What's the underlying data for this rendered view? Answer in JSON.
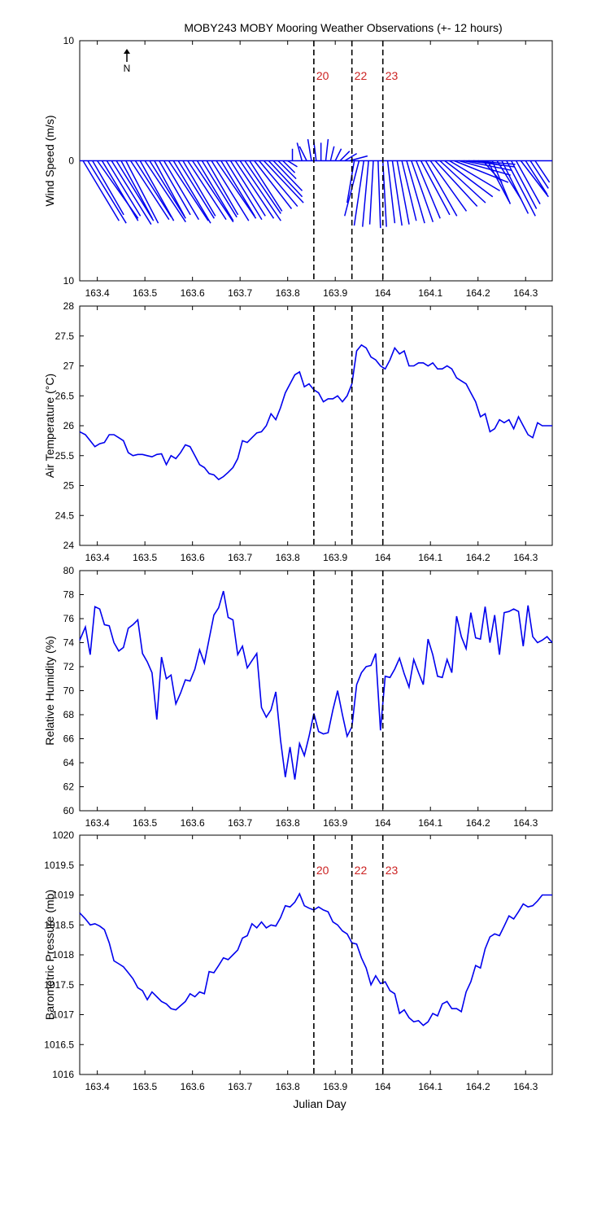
{
  "figure": {
    "title": "MOBY243 MOBY Mooring Weather Observations (+- 12 hours)",
    "north_label": "N",
    "xlabel": "Julian Day",
    "colors": {
      "series": "#0000ee",
      "marker": "#000000",
      "marker_label": "#cc2222"
    }
  },
  "chart_data": [
    {
      "type": "line",
      "subtype": "wind-vectors",
      "ylabel": "Wind Speed (m/s)",
      "xlim": [
        163.363,
        164.356
      ],
      "ylim": [
        -10,
        10
      ],
      "yticks": [
        10,
        0,
        10
      ],
      "xticks": [
        163.4,
        163.5,
        163.6,
        163.7,
        163.8,
        163.9,
        164,
        164.1,
        164.2,
        164.3
      ],
      "x": [
        163.37,
        163.38,
        163.39,
        163.4,
        163.41,
        163.42,
        163.43,
        163.44,
        163.45,
        163.46,
        163.47,
        163.48,
        163.49,
        163.5,
        163.51,
        163.52,
        163.53,
        163.54,
        163.55,
        163.56,
        163.57,
        163.58,
        163.59,
        163.6,
        163.61,
        163.62,
        163.63,
        163.64,
        163.65,
        163.66,
        163.67,
        163.68,
        163.69,
        163.7,
        163.71,
        163.72,
        163.73,
        163.74,
        163.75,
        163.76,
        163.77,
        163.78,
        163.79,
        163.8,
        163.81,
        163.83,
        163.84,
        163.85,
        163.86,
        163.87,
        163.88,
        163.89,
        163.9,
        163.91,
        163.92,
        163.93,
        163.94,
        163.95,
        163.96,
        163.97,
        163.98,
        163.99,
        164.0,
        164.01,
        164.02,
        164.03,
        164.04,
        164.05,
        164.06,
        164.07,
        164.08,
        164.09,
        164.1,
        164.11,
        164.12,
        164.13,
        164.14,
        164.15,
        164.16,
        164.17,
        164.18,
        164.19,
        164.2,
        164.21,
        164.22,
        164.23,
        164.24,
        164.25,
        164.26,
        164.27,
        164.28,
        164.29,
        164.3,
        164.31,
        164.32
      ],
      "u": [
        3.0,
        3.2,
        2.6,
        3.4,
        3.0,
        2.8,
        3.3,
        3.1,
        2.6,
        2.7,
        3.2,
        3.0,
        2.8,
        3.4,
        3.0,
        2.5,
        2.6,
        2.9,
        3.3,
        3.1,
        3.0,
        2.7,
        3.2,
        3.4,
        3.0,
        2.9,
        2.6,
        3.1,
        3.3,
        2.8,
        3.0,
        2.9,
        3.2,
        3.4,
        3.0,
        2.7,
        3.1,
        3.2,
        3.3,
        2.8,
        2.4,
        1.5,
        1.0,
        0.8,
        0.0,
        -0.4,
        -0.6,
        -0.3,
        -0.2,
        0.0,
        0.2,
        0.3,
        0.5,
        0.8,
        1.0,
        1.5,
        -0.6,
        -1.2,
        -0.8,
        -0.5,
        -0.3,
        0.2,
        0.3,
        0.6,
        0.8,
        1.0,
        1.2,
        1.5,
        1.8,
        2.0,
        2.4,
        2.6,
        3.0,
        3.5,
        3.8,
        4.0,
        4.2,
        4.5,
        4.3,
        4.0,
        3.8,
        3.5,
        2.0,
        1.6,
        1.8,
        1.5,
        2.0,
        2.2,
        2.4,
        2.1,
        2.0,
        2.3,
        1.8,
        1.5,
        1.2
      ],
      "v": [
        -5.0,
        -5.2,
        -4.5,
        -4.8,
        -5.0,
        -4.6,
        -5.3,
        -5.0,
        -4.8,
        -5.2,
        -4.9,
        -4.7,
        -5.0,
        -5.1,
        -4.8,
        -4.6,
        -4.5,
        -4.9,
        -5.0,
        -5.2,
        -4.8,
        -4.6,
        -4.9,
        -5.1,
        -5.0,
        -4.7,
        -4.5,
        -5.0,
        -4.8,
        -4.6,
        -4.9,
        -4.6,
        -4.8,
        -5.0,
        -4.4,
        -4.2,
        -4.0,
        -3.8,
        -3.5,
        -3.0,
        -2.5,
        -1.5,
        -1.0,
        -0.5,
        1.0,
        1.5,
        1.2,
        1.8,
        1.6,
        1.5,
        1.8,
        1.2,
        1.0,
        0.8,
        0.6,
        0.4,
        -3.5,
        -4.6,
        -5.4,
        -5.5,
        -5.3,
        -5.6,
        -5.5,
        -5.2,
        -5.4,
        -5.3,
        -5.0,
        -5.2,
        -5.1,
        -4.8,
        -4.5,
        -4.6,
        -4.2,
        -3.8,
        -3.5,
        -3.0,
        -2.5,
        -1.8,
        -1.2,
        -0.8,
        -0.5,
        -0.3,
        -0.4,
        -1.8,
        -3.4,
        -3.6,
        -3.2,
        -4.4,
        -4.6,
        -4.0,
        -3.6,
        -3.0,
        -2.8,
        -2.3,
        -1.8
      ]
    },
    {
      "type": "line",
      "ylabel": "Air Temperature (°C)",
      "xlim": [
        163.363,
        164.356
      ],
      "ylim": [
        24,
        28
      ],
      "yticks": [
        24,
        24.5,
        25,
        25.5,
        26,
        26.5,
        27,
        27.5,
        28
      ],
      "ytick_labels": [
        "24",
        "24.5",
        "25",
        "25.5",
        "26",
        "26.5",
        "27",
        "27.5",
        "28"
      ],
      "xticks": [
        163.4,
        163.5,
        163.6,
        163.7,
        163.8,
        163.9,
        164,
        164.1,
        164.2,
        164.3
      ],
      "x": [
        163.363,
        163.375,
        163.385,
        163.395,
        163.405,
        163.415,
        163.425,
        163.435,
        163.445,
        163.455,
        163.465,
        163.475,
        163.485,
        163.495,
        163.505,
        163.515,
        163.525,
        163.535,
        163.545,
        163.555,
        163.565,
        163.575,
        163.585,
        163.595,
        163.605,
        163.615,
        163.625,
        163.635,
        163.645,
        163.655,
        163.665,
        163.675,
        163.685,
        163.695,
        163.705,
        163.715,
        163.725,
        163.735,
        163.745,
        163.755,
        163.765,
        163.775,
        163.785,
        163.795,
        163.805,
        163.815,
        163.825,
        163.835,
        163.845,
        163.855,
        163.865,
        163.875,
        163.885,
        163.895,
        163.905,
        163.915,
        163.925,
        163.935,
        163.945,
        163.955,
        163.965,
        163.975,
        163.985,
        163.995,
        164.005,
        164.015,
        164.025,
        164.035,
        164.045,
        164.055,
        164.065,
        164.075,
        164.085,
        164.095,
        164.105,
        164.115,
        164.125,
        164.135,
        164.145,
        164.155,
        164.165,
        164.175,
        164.185,
        164.195,
        164.205,
        164.215,
        164.225,
        164.235,
        164.245,
        164.255,
        164.265,
        164.275,
        164.285,
        164.295,
        164.305,
        164.315,
        164.325,
        164.335,
        164.345,
        164.356
      ],
      "values": [
        25.9,
        25.85,
        25.75,
        25.65,
        25.7,
        25.72,
        25.85,
        25.85,
        25.8,
        25.75,
        25.55,
        25.5,
        25.52,
        25.52,
        25.5,
        25.48,
        25.52,
        25.53,
        25.35,
        25.5,
        25.45,
        25.55,
        25.68,
        25.65,
        25.5,
        25.35,
        25.3,
        25.2,
        25.18,
        25.1,
        25.15,
        25.22,
        25.3,
        25.45,
        25.75,
        25.72,
        25.8,
        25.88,
        25.9,
        26.0,
        26.2,
        26.1,
        26.3,
        26.55,
        26.7,
        26.85,
        26.9,
        26.65,
        26.7,
        26.6,
        26.55,
        26.4,
        26.45,
        26.45,
        26.5,
        26.4,
        26.5,
        26.7,
        27.25,
        27.35,
        27.3,
        27.15,
        27.1,
        27.0,
        26.95,
        27.1,
        27.3,
        27.2,
        27.25,
        27.0,
        27.0,
        27.05,
        27.05,
        27.0,
        27.05,
        26.95,
        26.95,
        27.0,
        26.95,
        26.8,
        26.75,
        26.7,
        26.55,
        26.4,
        26.15,
        26.2,
        25.9,
        25.95,
        26.1,
        26.05,
        26.1,
        25.95,
        26.15,
        26.0,
        25.85,
        25.8,
        26.05,
        26.0,
        26.0,
        26.0
      ]
    },
    {
      "type": "line",
      "ylabel": "Relative Humidity (%)",
      "xlim": [
        163.363,
        164.356
      ],
      "ylim": [
        60,
        80
      ],
      "yticks": [
        60,
        62,
        64,
        66,
        68,
        70,
        72,
        74,
        76,
        78,
        80
      ],
      "xticks": [
        163.4,
        163.5,
        163.6,
        163.7,
        163.8,
        163.9,
        164,
        164.1,
        164.2,
        164.3
      ],
      "x": [
        163.363,
        163.375,
        163.385,
        163.395,
        163.405,
        163.415,
        163.425,
        163.435,
        163.445,
        163.455,
        163.465,
        163.475,
        163.485,
        163.495,
        163.505,
        163.515,
        163.525,
        163.535,
        163.545,
        163.555,
        163.565,
        163.575,
        163.585,
        163.595,
        163.605,
        163.615,
        163.625,
        163.635,
        163.645,
        163.655,
        163.665,
        163.675,
        163.685,
        163.695,
        163.705,
        163.715,
        163.725,
        163.735,
        163.745,
        163.755,
        163.765,
        163.775,
        163.785,
        163.795,
        163.805,
        163.815,
        163.825,
        163.835,
        163.845,
        163.855,
        163.865,
        163.875,
        163.885,
        163.895,
        163.905,
        163.915,
        163.925,
        163.935,
        163.945,
        163.955,
        163.965,
        163.975,
        163.985,
        163.995,
        164.005,
        164.015,
        164.025,
        164.035,
        164.045,
        164.055,
        164.065,
        164.075,
        164.085,
        164.095,
        164.105,
        164.115,
        164.125,
        164.135,
        164.145,
        164.155,
        164.165,
        164.175,
        164.185,
        164.195,
        164.205,
        164.215,
        164.225,
        164.235,
        164.245,
        164.255,
        164.265,
        164.275,
        164.285,
        164.295,
        164.305,
        164.315,
        164.325,
        164.335,
        164.345,
        164.356
      ],
      "values": [
        74.2,
        75.3,
        73.0,
        77.0,
        76.8,
        75.5,
        75.4,
        74.0,
        73.3,
        73.6,
        75.2,
        75.5,
        75.9,
        73.1,
        72.4,
        71.5,
        67.6,
        72.8,
        71.0,
        71.3,
        68.9,
        69.8,
        70.9,
        70.8,
        71.8,
        73.4,
        72.3,
        74.3,
        76.3,
        76.9,
        78.3,
        76.1,
        75.9,
        73.0,
        73.7,
        71.9,
        72.5,
        73.1,
        68.6,
        67.8,
        68.4,
        69.9,
        65.9,
        62.8,
        65.3,
        62.6,
        65.6,
        64.6,
        66.2,
        68.1,
        66.6,
        66.4,
        66.5,
        68.4,
        70.0,
        68.0,
        66.2,
        67.0,
        70.5,
        71.5,
        72.0,
        72.1,
        73.1,
        66.7,
        71.2,
        71.1,
        71.8,
        72.7,
        71.4,
        70.3,
        72.6,
        71.5,
        70.5,
        74.3,
        73.0,
        71.2,
        71.1,
        72.6,
        71.5,
        76.2,
        74.5,
        73.5,
        76.5,
        74.4,
        74.3,
        77.0,
        74.0,
        76.3,
        73.0,
        76.5,
        76.6,
        76.8,
        76.6,
        73.7,
        77.1,
        74.5,
        74.0,
        74.2,
        74.5,
        74.0
      ]
    },
    {
      "type": "line",
      "ylabel": "Barometric Pressure (mb)",
      "xlim": [
        163.363,
        164.356
      ],
      "ylim": [
        1016,
        1020
      ],
      "yticks": [
        1016,
        1016.5,
        1017,
        1017.5,
        1018,
        1018.5,
        1019,
        1019.5,
        1020
      ],
      "ytick_labels": [
        "1016",
        "1016.5",
        "1017",
        "1017.5",
        "1018",
        "1018.5",
        "1019",
        "1019.5",
        "1020"
      ],
      "xticks": [
        163.4,
        163.5,
        163.6,
        163.7,
        163.8,
        163.9,
        164,
        164.1,
        164.2,
        164.3
      ],
      "x": [
        163.363,
        163.375,
        163.385,
        163.395,
        163.405,
        163.415,
        163.425,
        163.435,
        163.445,
        163.455,
        163.465,
        163.475,
        163.485,
        163.495,
        163.505,
        163.515,
        163.525,
        163.535,
        163.545,
        163.555,
        163.565,
        163.575,
        163.585,
        163.595,
        163.605,
        163.615,
        163.625,
        163.635,
        163.645,
        163.655,
        163.665,
        163.675,
        163.685,
        163.695,
        163.705,
        163.715,
        163.725,
        163.735,
        163.745,
        163.755,
        163.765,
        163.775,
        163.785,
        163.795,
        163.805,
        163.815,
        163.825,
        163.835,
        163.845,
        163.855,
        163.865,
        163.875,
        163.885,
        163.895,
        163.905,
        163.915,
        163.925,
        163.935,
        163.945,
        163.955,
        163.965,
        163.975,
        163.985,
        163.995,
        164.005,
        164.015,
        164.025,
        164.035,
        164.045,
        164.055,
        164.065,
        164.075,
        164.085,
        164.095,
        164.105,
        164.115,
        164.125,
        164.135,
        164.145,
        164.155,
        164.165,
        164.175,
        164.185,
        164.195,
        164.205,
        164.215,
        164.225,
        164.235,
        164.245,
        164.255,
        164.265,
        164.275,
        164.285,
        164.295,
        164.305,
        164.315,
        164.325,
        164.335,
        164.345,
        164.356
      ],
      "values": [
        1018.7,
        1018.6,
        1018.5,
        1018.52,
        1018.48,
        1018.42,
        1018.2,
        1017.9,
        1017.85,
        1017.8,
        1017.7,
        1017.6,
        1017.45,
        1017.4,
        1017.25,
        1017.38,
        1017.3,
        1017.22,
        1017.18,
        1017.1,
        1017.08,
        1017.15,
        1017.22,
        1017.35,
        1017.3,
        1017.38,
        1017.35,
        1017.72,
        1017.7,
        1017.82,
        1017.95,
        1017.92,
        1018.0,
        1018.08,
        1018.28,
        1018.32,
        1018.52,
        1018.45,
        1018.55,
        1018.45,
        1018.5,
        1018.48,
        1018.62,
        1018.82,
        1018.8,
        1018.88,
        1019.02,
        1018.82,
        1018.78,
        1018.75,
        1018.8,
        1018.75,
        1018.72,
        1018.55,
        1018.5,
        1018.4,
        1018.35,
        1018.2,
        1018.18,
        1017.95,
        1017.78,
        1017.5,
        1017.65,
        1017.52,
        1017.55,
        1017.4,
        1017.35,
        1017.02,
        1017.08,
        1016.95,
        1016.88,
        1016.9,
        1016.82,
        1016.88,
        1017.02,
        1016.98,
        1017.18,
        1017.22,
        1017.1,
        1017.1,
        1017.05,
        1017.38,
        1017.55,
        1017.82,
        1017.78,
        1018.1,
        1018.3,
        1018.35,
        1018.32,
        1018.48,
        1018.65,
        1018.6,
        1018.72,
        1018.85,
        1018.8,
        1018.82,
        1018.9,
        1019.0,
        1019.0,
        1019.0
      ]
    }
  ],
  "markers": [
    {
      "x": 163.855,
      "label": "20"
    },
    {
      "x": 163.935,
      "label": "22"
    },
    {
      "x": 164.0,
      "label": "23"
    }
  ]
}
